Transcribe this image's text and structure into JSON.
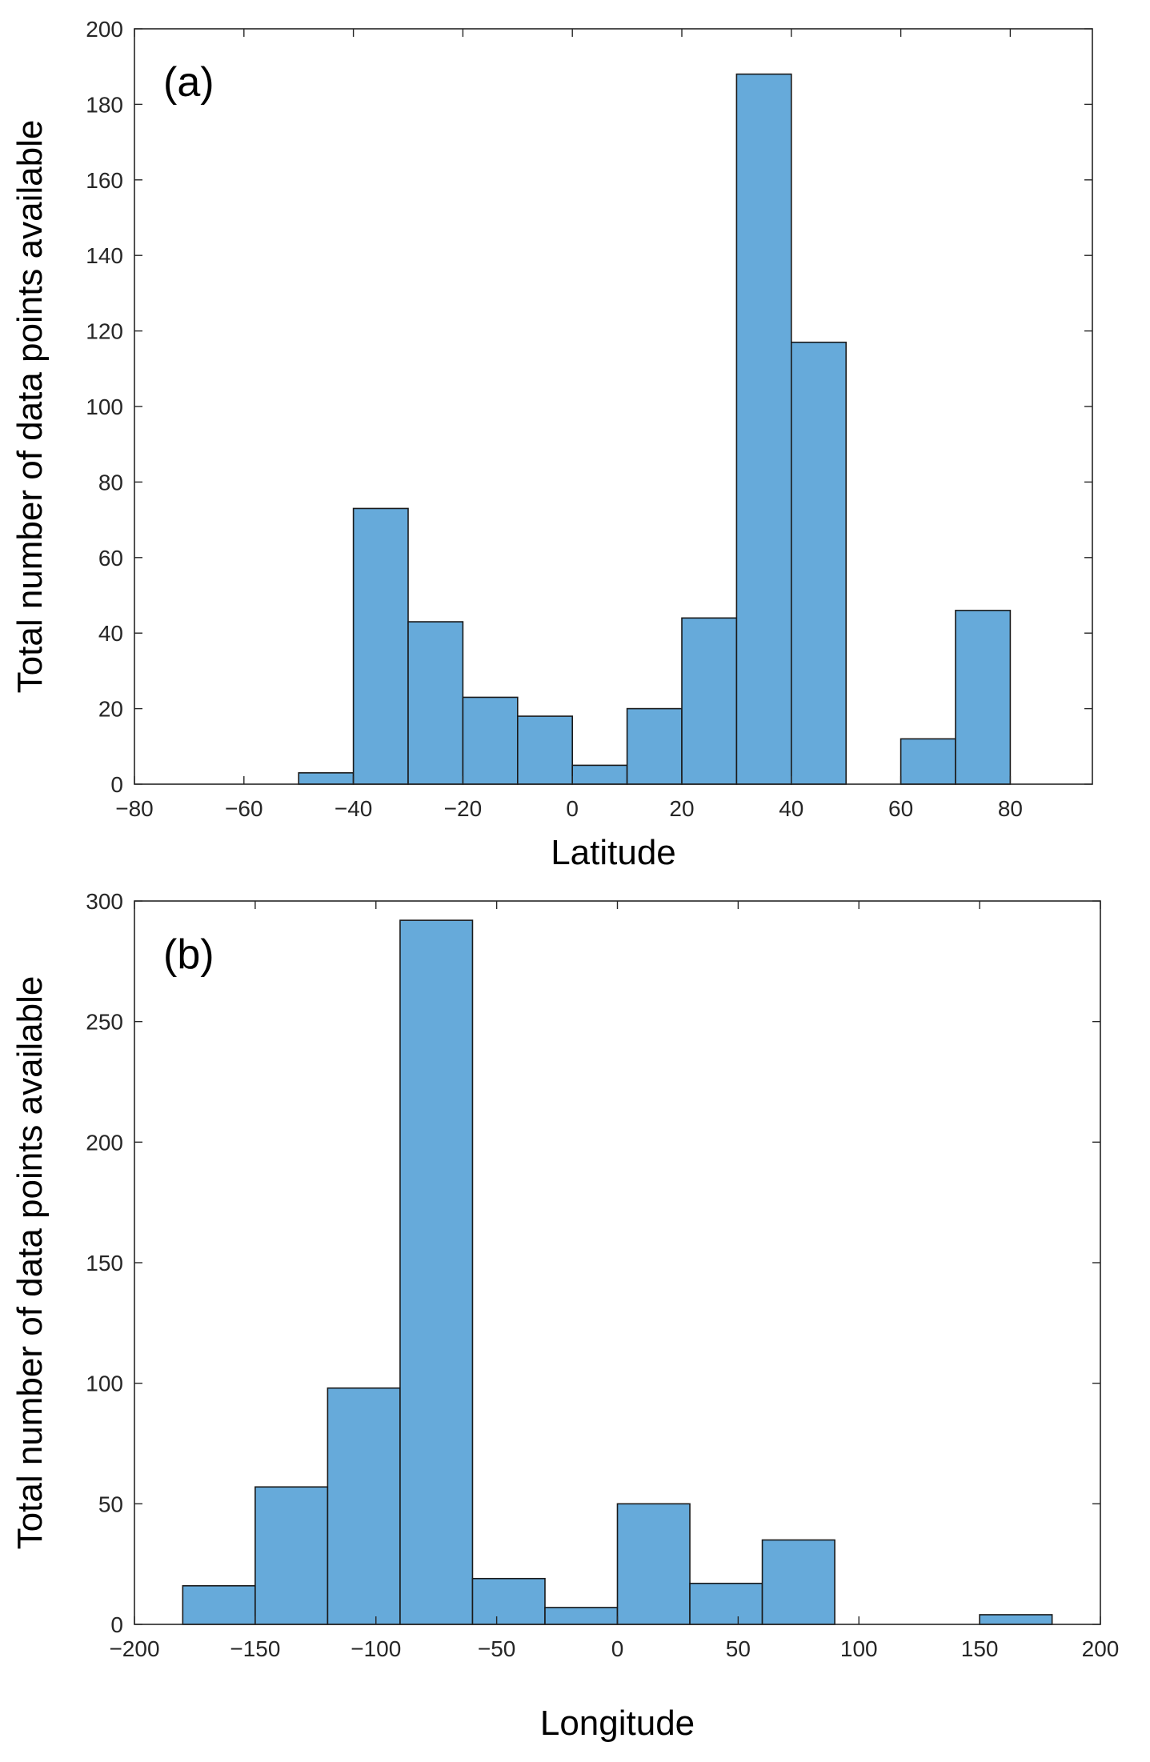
{
  "chart_data": [
    {
      "type": "bar",
      "panel_label": "(a)",
      "xlabel": "Latitude",
      "ylabel": "Total number of data points available",
      "xlim": [
        -80,
        95
      ],
      "ylim": [
        0,
        200
      ],
      "xticks": [
        -80,
        -60,
        -40,
        -20,
        0,
        20,
        40,
        60,
        80
      ],
      "yticks": [
        0,
        20,
        40,
        60,
        80,
        100,
        120,
        140,
        160,
        180,
        200
      ],
      "tick_labels_x": [
        "−80",
        "−60",
        "−40",
        "−20",
        "0",
        "20",
        "40",
        "60",
        "80"
      ],
      "tick_labels_y": [
        "0",
        "20",
        "40",
        "60",
        "80",
        "100",
        "120",
        "140",
        "160",
        "180",
        "200"
      ],
      "bin_edges": [
        -50,
        -40,
        -30,
        -20,
        -10,
        0,
        10,
        20,
        30,
        40,
        50,
        60,
        70,
        80
      ],
      "values": [
        3,
        73,
        43,
        23,
        18,
        5,
        20,
        44,
        188,
        117,
        0,
        12,
        46
      ],
      "grid": false
    },
    {
      "type": "bar",
      "panel_label": "(b)",
      "xlabel": "Longitude",
      "ylabel": "Total number of data points available",
      "xlim": [
        -200,
        200
      ],
      "ylim": [
        0,
        300
      ],
      "xticks": [
        -200,
        -150,
        -100,
        -50,
        0,
        50,
        100,
        150,
        200
      ],
      "yticks": [
        0,
        50,
        100,
        150,
        200,
        250,
        300
      ],
      "tick_labels_x": [
        "−200",
        "−150",
        "−100",
        "−50",
        "0",
        "50",
        "100",
        "150",
        "200"
      ],
      "tick_labels_y": [
        "0",
        "50",
        "100",
        "150",
        "200",
        "250",
        "300"
      ],
      "bin_edges": [
        -180,
        -150,
        -120,
        -90,
        -60,
        -30,
        0,
        30,
        60,
        90,
        120,
        150,
        180
      ],
      "values": [
        16,
        57,
        98,
        292,
        19,
        7,
        50,
        17,
        35,
        0,
        0,
        4
      ],
      "grid": false
    }
  ],
  "colors": {
    "bar_fill": "#66AADA",
    "bar_edge": "#1A1A1A",
    "axis": "#262626"
  }
}
